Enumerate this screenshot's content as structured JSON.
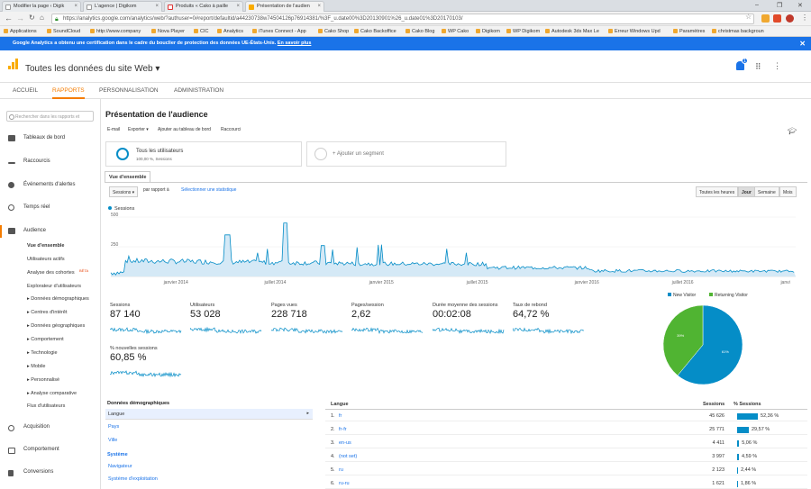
{
  "browser": {
    "tabs": [
      {
        "label": "Modifier la page ‹ Digik"
      },
      {
        "label": "L'agence | Digikom"
      },
      {
        "label": "Produits « Cako à paille"
      },
      {
        "label": "Présentation de l'audien"
      }
    ],
    "url": "https://analytics.google.com/analytics/web/?authuser=0#report/defaultid/a44230738w74504126p76914381/%3F_u.date00%3D20130901%26_u.date01%3D20170103/",
    "bookmarks": [
      "Applications",
      "SoundCloud",
      "http://www.company",
      "Nova Player",
      "CIC",
      "Analytics",
      "iTunes Connect - App",
      "Cako Shop",
      "Cako Backoffice",
      "Cako Blog",
      "WP Cako",
      "Digikom",
      "WP Digikom",
      "Autodesk 3ds Max Le",
      "Erreur Windows Upd",
      "Paramètres",
      "christmas backgroun"
    ]
  },
  "notice": {
    "text": "Google Analytics a obtenu une certification dans le cadre du bouclier de protection des données UE-États-Unis.",
    "link": "En savoir plus"
  },
  "header": {
    "property": "Toutes les données du site Web ▾",
    "notif_count": "1"
  },
  "menu": [
    "ACCUEIL",
    "RAPPORTS",
    "PERSONNALISATION",
    "ADMINISTRATION"
  ],
  "sidebar": {
    "search_placeholder": "Rechercher dans les rapports et",
    "items": [
      "Tableaux de bord",
      "Raccourcis",
      "Événements d'alertes",
      "Temps réel",
      "Audience",
      "Acquisition",
      "Comportement",
      "Conversions"
    ],
    "audience_sub": [
      "Vue d'ensemble",
      "Utilisateurs actifs",
      "Analyse des cohortes",
      "Explorateur d'utilisateurs",
      "▸ Données démographiques",
      "▸ Centres d'intérêt",
      "▸ Données géographiques",
      "▸ Comportement",
      "▸ Technologie",
      "▸ Mobile",
      "▸ Personnalisé",
      "▸ Analyse comparative",
      "Flux d'utilisateurs"
    ],
    "beta": "BÊTA"
  },
  "page": {
    "title": "Présentation de l'audience",
    "tools": [
      "E-mail",
      "Exporter ▾",
      "Ajouter au tableau de bord",
      "Raccourci"
    ],
    "segment1_title": "Tous les utilisateurs",
    "segment1_sub": "100,00 %, Sessions",
    "segment2": "+ Ajouter un segment",
    "tab": "Vue d'ensemble",
    "metric_select": "Sessions ▾",
    "par_rapport": "par rapport à",
    "select_stat": "Sélectionner une statistique",
    "periods": [
      "Toutes les heures",
      "Jour",
      "Semaine",
      "Mois"
    ]
  },
  "chart_data": {
    "type": "line",
    "series": [
      {
        "name": "Sessions"
      }
    ],
    "ylim": [
      0,
      500
    ],
    "yticks": [
      "500",
      "250"
    ],
    "xticks": [
      "janvier 2014",
      "juillet 2014",
      "janvier 2015",
      "juillet 2015",
      "janvier 2016",
      "juillet 2016",
      "janvi"
    ]
  },
  "metrics": [
    {
      "label": "Sessions",
      "value": "87 140"
    },
    {
      "label": "Utilisateurs",
      "value": "53 028"
    },
    {
      "label": "Pages vues",
      "value": "228 718"
    },
    {
      "label": "Pages/session",
      "value": "2,62"
    },
    {
      "label": "Durée moyenne des sessions",
      "value": "00:02:08"
    },
    {
      "label": "Taux de rebond",
      "value": "64,72 %"
    },
    {
      "label": "% nouvelles sessions",
      "value": "60,85 %"
    }
  ],
  "pie": {
    "legend": [
      "New Visitor",
      "Returning Visitor"
    ],
    "labels": [
      "61%",
      "39%"
    ],
    "values": [
      61,
      39
    ],
    "colors": [
      "#058dc7",
      "#50b432"
    ]
  },
  "dimensions": {
    "h1": "Données démographiques",
    "items1": [
      "Langue",
      "Pays",
      "Ville"
    ],
    "h2": "Système",
    "items2": [
      "Navigateur",
      "Système d'exploitation"
    ]
  },
  "lang_table": {
    "headers": [
      "Langue",
      "Sessions",
      "% Sessions"
    ],
    "rows": [
      {
        "n": "1.",
        "lang": "fr",
        "sessions": "45 626",
        "pct": "52,36 %",
        "frac": 0.5236
      },
      {
        "n": "2.",
        "lang": "fr-fr",
        "sessions": "25 771",
        "pct": "29,57 %",
        "frac": 0.2957
      },
      {
        "n": "3.",
        "lang": "en-us",
        "sessions": "4 411",
        "pct": "5,06 %",
        "frac": 0.0506
      },
      {
        "n": "4.",
        "lang": "(not set)",
        "sessions": "3 997",
        "pct": "4,59 %",
        "frac": 0.0459
      },
      {
        "n": "5.",
        "lang": "ru",
        "sessions": "2 123",
        "pct": "2,44 %",
        "frac": 0.0244
      },
      {
        "n": "6.",
        "lang": "ru-ru",
        "sessions": "1 621",
        "pct": "1,86 %",
        "frac": 0.0186
      }
    ]
  }
}
